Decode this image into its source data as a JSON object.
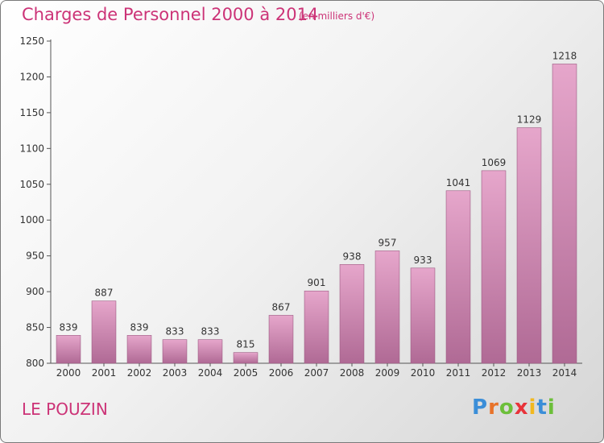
{
  "title": "Charges de Personnel 2000 à 2014",
  "unit_note": "(en milliers d'€)",
  "commune": "LE POUZIN",
  "logo": {
    "text": "Proxiti",
    "letters": [
      {
        "ch": "P",
        "color": "#3b8ed8"
      },
      {
        "ch": "r",
        "color": "#e8732a"
      },
      {
        "ch": "o",
        "color": "#6cbf3a"
      },
      {
        "ch": "x",
        "color": "#e8333a"
      },
      {
        "ch": "i",
        "color": "#f2b81f"
      },
      {
        "ch": "t",
        "color": "#3b8ed8"
      },
      {
        "ch": "i",
        "color": "#6cbf3a"
      }
    ]
  },
  "colors": {
    "title": "#cc3377",
    "bar_top": "#e6a6cb",
    "bar_bottom": "#b06a95",
    "axis": "#555555"
  },
  "chart_data": {
    "type": "bar",
    "title": "Charges de Personnel 2000 à 2014",
    "xlabel": "",
    "ylabel": "",
    "categories": [
      "2000",
      "2001",
      "2002",
      "2003",
      "2004",
      "2005",
      "2006",
      "2007",
      "2008",
      "2009",
      "2010",
      "2011",
      "2012",
      "2013",
      "2014"
    ],
    "values": [
      839,
      887,
      839,
      833,
      833,
      815,
      867,
      901,
      938,
      957,
      933,
      1041,
      1069,
      1129,
      1218
    ],
    "ylim": [
      800,
      1250
    ],
    "yticks": [
      800,
      850,
      900,
      950,
      1000,
      1050,
      1100,
      1150,
      1200,
      1250
    ],
    "grid": false,
    "data_labels": true
  }
}
